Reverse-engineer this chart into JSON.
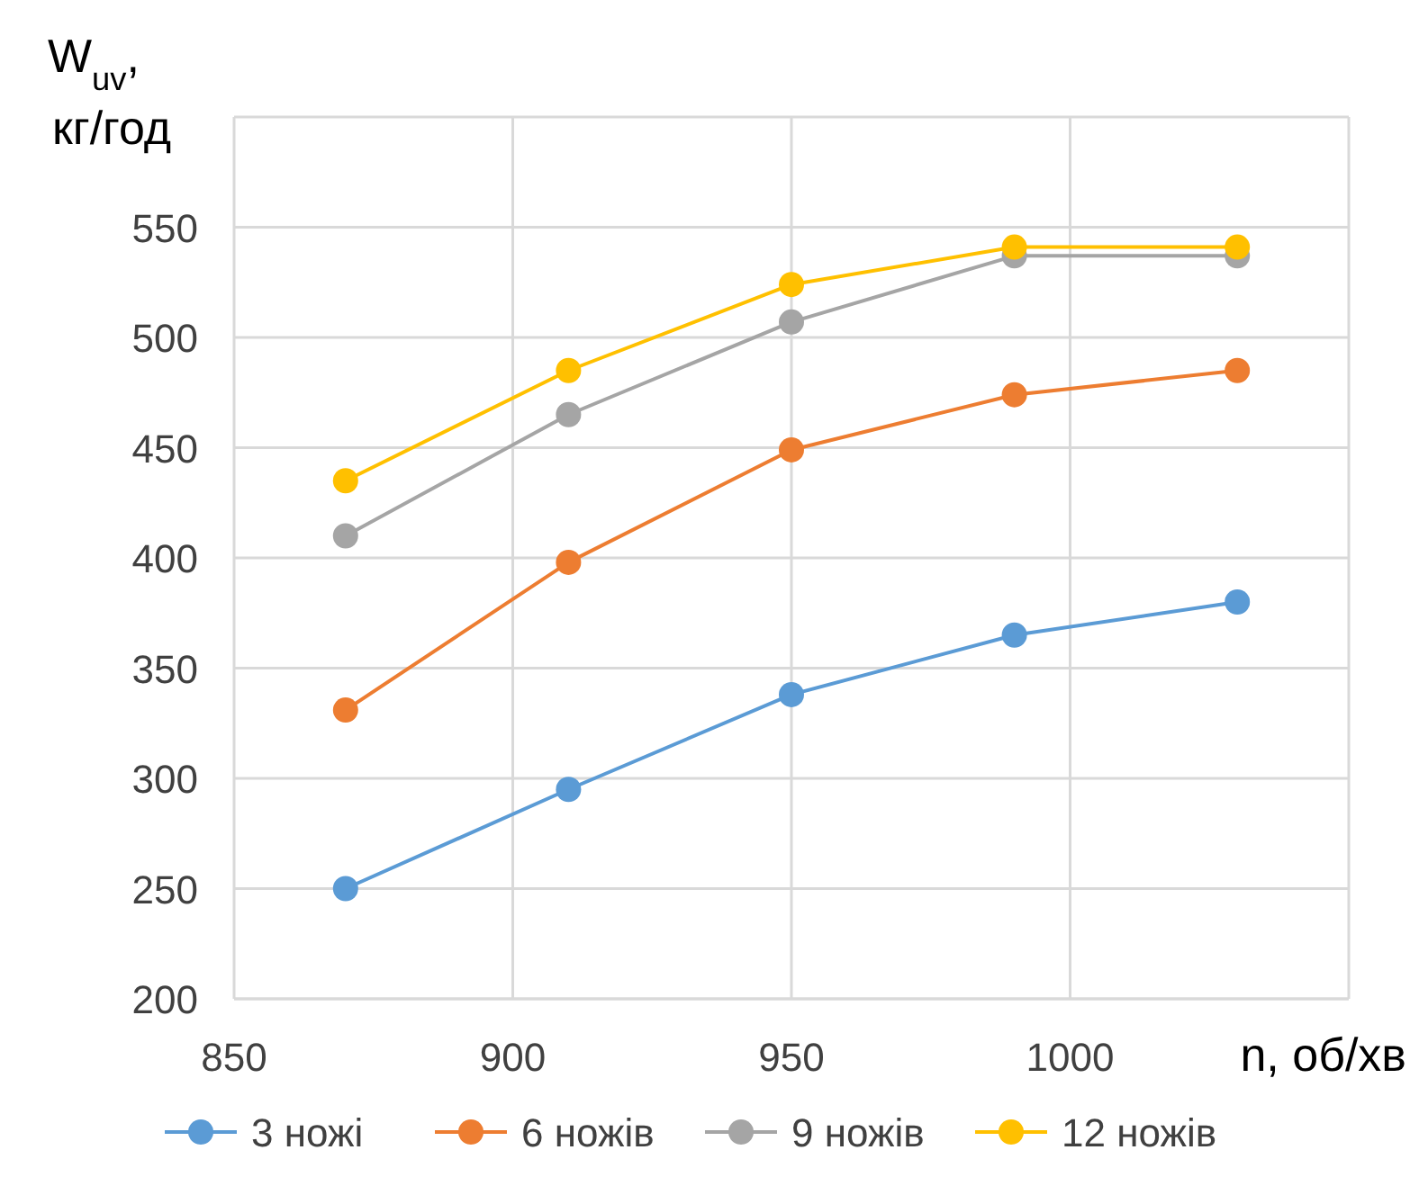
{
  "chart_data": {
    "type": "line",
    "xlabel": "n, об/хв",
    "ylabel": "W$_{uv}$, кг/год",
    "xlim": [
      850,
      1050
    ],
    "xticks": [
      850,
      900,
      950,
      1000,
      {
        "value": 1050,
        "label": null
      }
    ],
    "ylim": [
      200,
      600
    ],
    "yticks": [
      200,
      250,
      300,
      350,
      400,
      450,
      500,
      550,
      {
        "value": 600,
        "label": null
      }
    ],
    "x": [
      870,
      910,
      950,
      990,
      1030
    ],
    "series": [
      {
        "name": "3 ножі",
        "color": "#5b9bd5",
        "values": [
          250,
          295,
          338,
          365,
          380
        ]
      },
      {
        "name": "6 ножів",
        "color": "#ed7d31",
        "values": [
          331,
          398,
          449,
          474,
          485
        ]
      },
      {
        "name": "9 ножів",
        "color": "#a5a5a5",
        "values": [
          410,
          465,
          507,
          537,
          537
        ]
      },
      {
        "name": "12 ножів",
        "color": "#ffc000",
        "values": [
          435,
          485,
          524,
          541,
          541
        ]
      }
    ],
    "grid": true,
    "legend": "bottom",
    "marker": "circle",
    "line_style": "solid"
  }
}
